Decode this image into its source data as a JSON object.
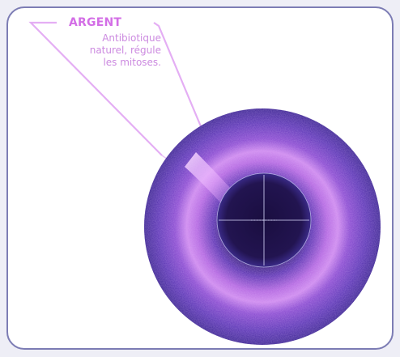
{
  "label": {
    "title": "ARGENT",
    "caption_line1": "Antibiotique",
    "caption_line2": "naturel, régule",
    "caption_line3": "les mitoses."
  },
  "colors": {
    "border": "#7c7cb4",
    "label_title": "#d36ee6",
    "label_text": "#cc8ae0",
    "leader_line": "#e2a4f2",
    "iris_outer": "#4a2a9a",
    "iris_ring": "#b05ad8",
    "pupil": "#1c1048",
    "crosshair": "#dcdcff"
  }
}
